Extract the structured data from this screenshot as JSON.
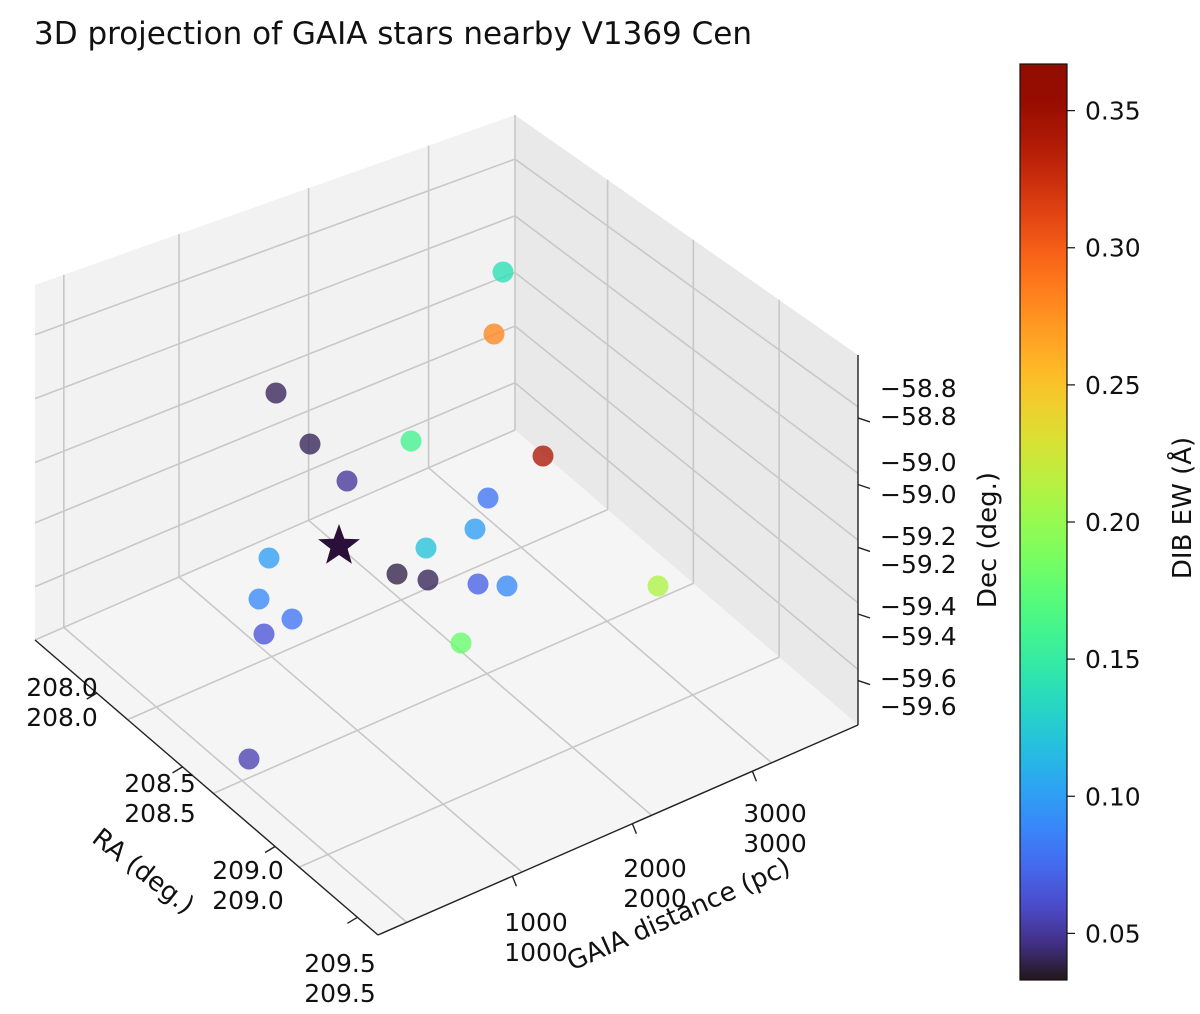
{
  "chart_data": {
    "type": "scatter",
    "title": "3D projection of GAIA stars nearby V1369 Cen",
    "xlabel": "RA (deg.)",
    "ylabel": "GAIA distance (pc)",
    "zlabel": "Dec (deg.)",
    "colorbar_label": "DIB EW (Å)",
    "colormap": "turbo",
    "color_range": [
      0.033,
      0.367
    ],
    "grid": true,
    "x_ticks": [
      208.0,
      208.5,
      209.0,
      209.5
    ],
    "x_tick_labels": [
      "208.0",
      "208.5",
      "209.0",
      "209.5"
    ],
    "y_ticks": [
      1000,
      2000,
      3000
    ],
    "y_tick_labels": [
      "1000",
      "2000",
      "3000"
    ],
    "z_ticks": [
      -58.8,
      -59.0,
      -59.2,
      -59.4,
      -59.6
    ],
    "z_tick_labels": [
      "−58.8",
      "−59.0",
      "−59.2",
      "−59.4",
      "−59.6"
    ],
    "colorbar_ticks": [
      0.05,
      0.1,
      0.15,
      0.2,
      0.25,
      0.3,
      0.35
    ],
    "colorbar_tick_labels": [
      "0.05",
      "0.10",
      "0.15",
      "0.20",
      "0.25",
      "0.30",
      "0.35"
    ],
    "target": {
      "name": "V1369 Cen",
      "marker": "star",
      "color": "#2a1038"
    },
    "points": [
      {
        "ew": 0.04
      },
      {
        "ew": 0.04
      },
      {
        "ew": 0.05
      },
      {
        "ew": 0.14
      },
      {
        "ew": 0.28
      },
      {
        "ew": 0.16
      },
      {
        "ew": 0.34
      },
      {
        "ew": 0.08
      },
      {
        "ew": 0.1
      },
      {
        "ew": 0.12
      },
      {
        "ew": 0.038
      },
      {
        "ew": 0.04
      },
      {
        "ew": 0.07
      },
      {
        "ew": 0.09
      },
      {
        "ew": 0.21
      },
      {
        "ew": 0.1
      },
      {
        "ew": 0.09
      },
      {
        "ew": 0.08
      },
      {
        "ew": 0.065
      },
      {
        "ew": 0.18
      },
      {
        "ew": 0.055
      }
    ]
  }
}
